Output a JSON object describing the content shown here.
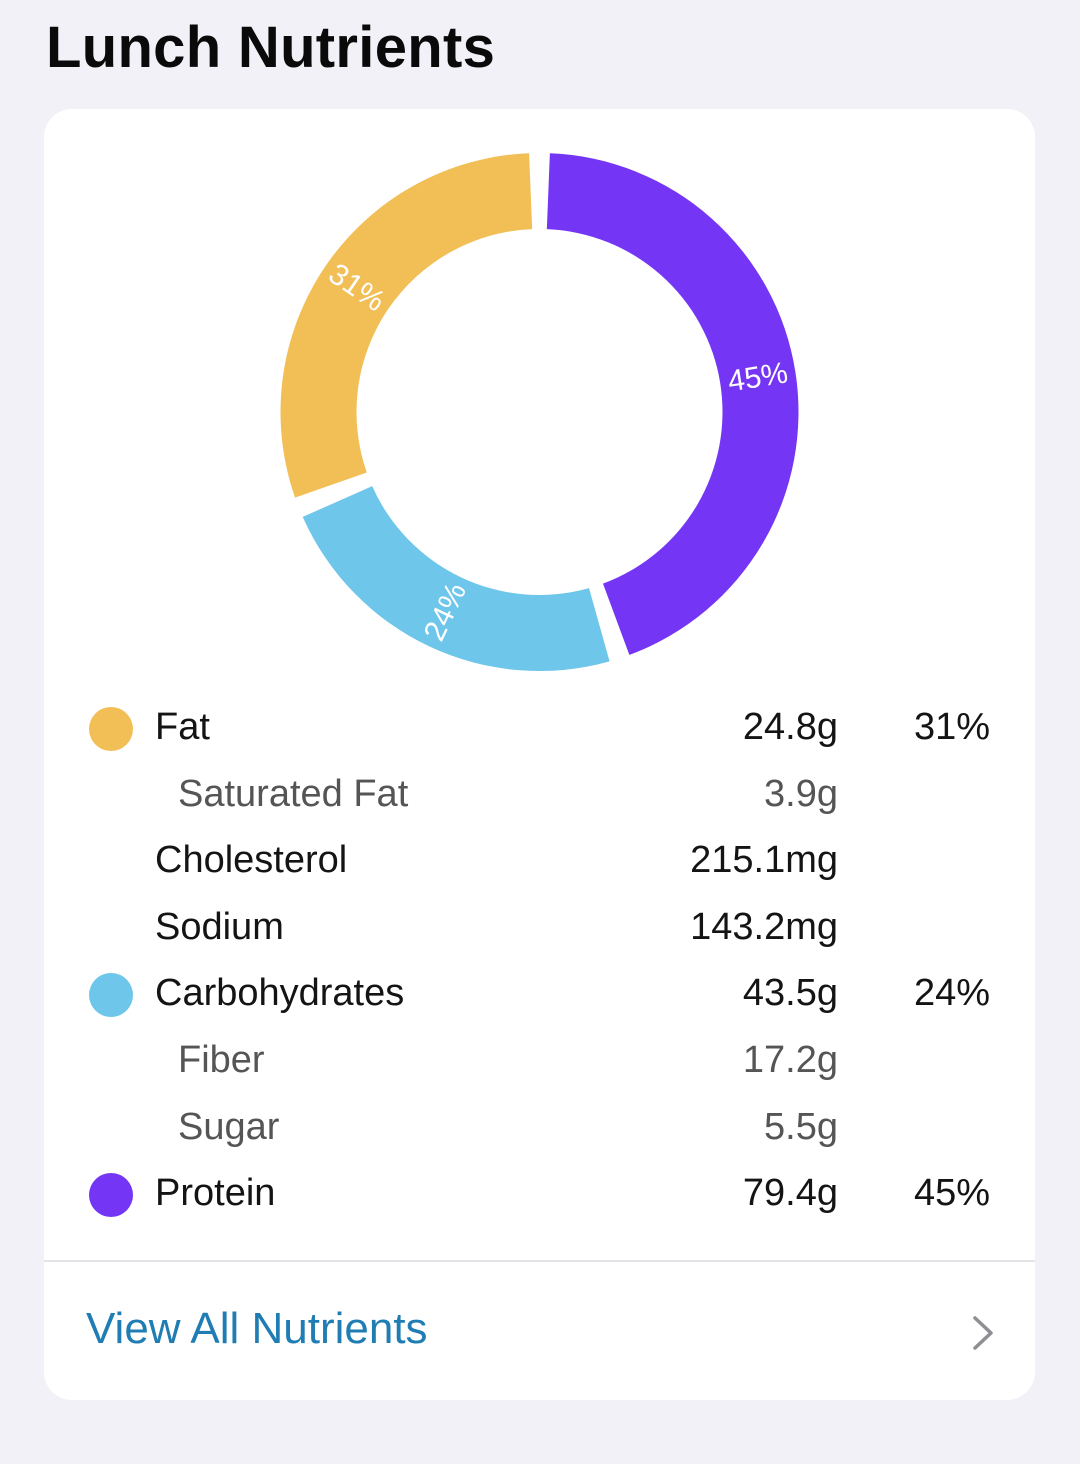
{
  "page": {
    "title": "Lunch Nutrients"
  },
  "chart_data": {
    "type": "pie",
    "variant": "donut",
    "slices": [
      {
        "label": "Fat",
        "percent": 31,
        "value_label": "31%",
        "color": "#f2bf57"
      },
      {
        "label": "Carbohydrates",
        "percent": 24,
        "value_label": "24%",
        "color": "#6ec6ea"
      },
      {
        "label": "Protein",
        "percent": 45,
        "value_label": "45%",
        "color": "#7436f4"
      }
    ]
  },
  "nutrients": [
    {
      "name": "Fat",
      "amount": "24.8g",
      "percent": "31%",
      "color": "#f2bf57",
      "sub": false
    },
    {
      "name": "Saturated Fat",
      "amount": "3.9g",
      "percent": "",
      "color": "",
      "sub": true
    },
    {
      "name": "Cholesterol",
      "amount": "215.1mg",
      "percent": "",
      "color": "",
      "sub": false
    },
    {
      "name": "Sodium",
      "amount": "143.2mg",
      "percent": "",
      "color": "",
      "sub": false
    },
    {
      "name": "Carbohydrates",
      "amount": "43.5g",
      "percent": "24%",
      "color": "#6ec6ea",
      "sub": false
    },
    {
      "name": "Fiber",
      "amount": "17.2g",
      "percent": "",
      "color": "",
      "sub": true
    },
    {
      "name": "Sugar",
      "amount": "5.5g",
      "percent": "",
      "color": "",
      "sub": true
    },
    {
      "name": "Protein",
      "amount": "79.4g",
      "percent": "45%",
      "color": "#7436f4",
      "sub": false
    }
  ],
  "footer": {
    "view_all_label": "View All Nutrients",
    "chevron_icon": "chevron-right-icon",
    "link_color": "#1f7db3"
  }
}
